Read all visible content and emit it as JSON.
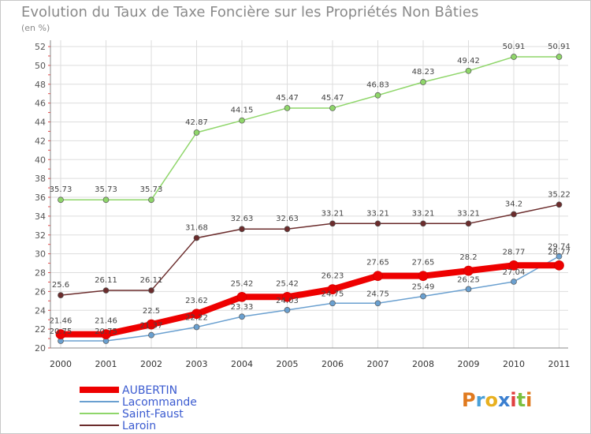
{
  "chart_data": {
    "type": "line",
    "title": "Evolution du Taux de Taxe Foncière sur les Propriétés Non Bâties",
    "ylabel": "(en %)",
    "categories": [
      "2000",
      "2001",
      "2002",
      "2003",
      "2004",
      "2005",
      "2006",
      "2007",
      "2008",
      "2009",
      "2010",
      "2011"
    ],
    "ylim": [
      20,
      52
    ],
    "ytick_step": 2,
    "grid": true,
    "legend_placement": "bottom-left",
    "series": [
      {
        "name": "AUBERTIN",
        "color": "#ee0000",
        "values": [
          21.46,
          21.46,
          22.5,
          23.62,
          25.42,
          25.42,
          26.23,
          27.65,
          27.65,
          28.2,
          28.77,
          28.77
        ],
        "thick": true
      },
      {
        "name": "Lacommande",
        "color": "#6aa0d0",
        "values": [
          20.75,
          20.75,
          21.37,
          22.22,
          23.33,
          24.03,
          24.75,
          24.75,
          25.49,
          26.25,
          27.04,
          29.74
        ]
      },
      {
        "name": "Saint-Faust",
        "color": "#8fd66a",
        "values": [
          35.73,
          35.73,
          35.73,
          42.87,
          44.15,
          45.47,
          45.47,
          46.83,
          48.23,
          49.42,
          50.91,
          50.91
        ]
      },
      {
        "name": "Laroin",
        "color": "#6b2c2c",
        "values": [
          25.6,
          26.11,
          26.11,
          31.68,
          32.63,
          32.63,
          33.21,
          33.21,
          33.21,
          33.21,
          34.2,
          35.22
        ]
      }
    ]
  },
  "logo": {
    "text": "Proxiti"
  }
}
